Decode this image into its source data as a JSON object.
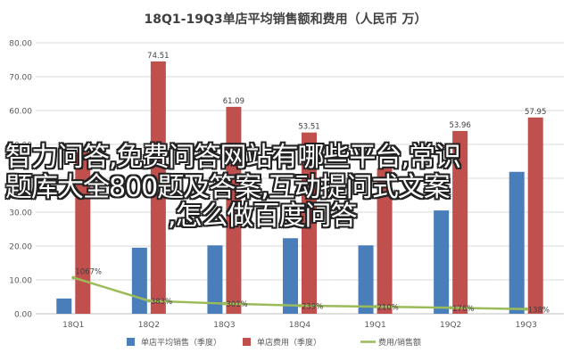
{
  "overlay": {
    "line1": "智力问答,免费问答网站有哪些平台,常识",
    "line2": "题库大全800题及答案,互动提问式文案",
    "line3": ",怎么做百度问答"
  },
  "colors": {
    "avg_sales": "#4a7ebb",
    "expense": "#c0504d",
    "ratio": "#9bbb59",
    "grid": "#d9d9d9"
  },
  "chart_data": {
    "type": "bar",
    "title": "18Q1-19Q3单店平均销售额和费用（人民币 万）",
    "categories": [
      "18Q1",
      "18Q2",
      "18Q3",
      "18Q4",
      "19Q1",
      "19Q2",
      "19Q3"
    ],
    "ylim": [
      0,
      80
    ],
    "yticks": [
      "0.00",
      "10.00",
      "20.00",
      "30.00",
      "40.00",
      "50.00",
      "60.00",
      "70.00",
      "80.00"
    ],
    "grid": true,
    "legend_position": "bottom",
    "series": [
      {
        "name": "单店平均销售（季度）",
        "kind": "bar",
        "values": [
          4.5,
          19.5,
          20.2,
          22.3,
          20.2,
          30.5,
          41.9
        ],
        "labels": []
      },
      {
        "name": "单店费用（季度）",
        "kind": "bar",
        "values": [
          47.63,
          74.51,
          61.09,
          53.51,
          43.0,
          53.96,
          57.95
        ],
        "labels": [
          "47.63",
          "74.51",
          "61.09",
          "53.51",
          "",
          "53.96",
          "57.95"
        ]
      },
      {
        "name": "费用/销售额",
        "kind": "line",
        "values": [
          10.67,
          3.83,
          3.01,
          2.39,
          2.1,
          1.76,
          1.38
        ],
        "labels": [
          "1067%",
          "383%",
          "301%",
          "239%",
          "210%",
          "176%",
          "138%"
        ]
      }
    ]
  }
}
